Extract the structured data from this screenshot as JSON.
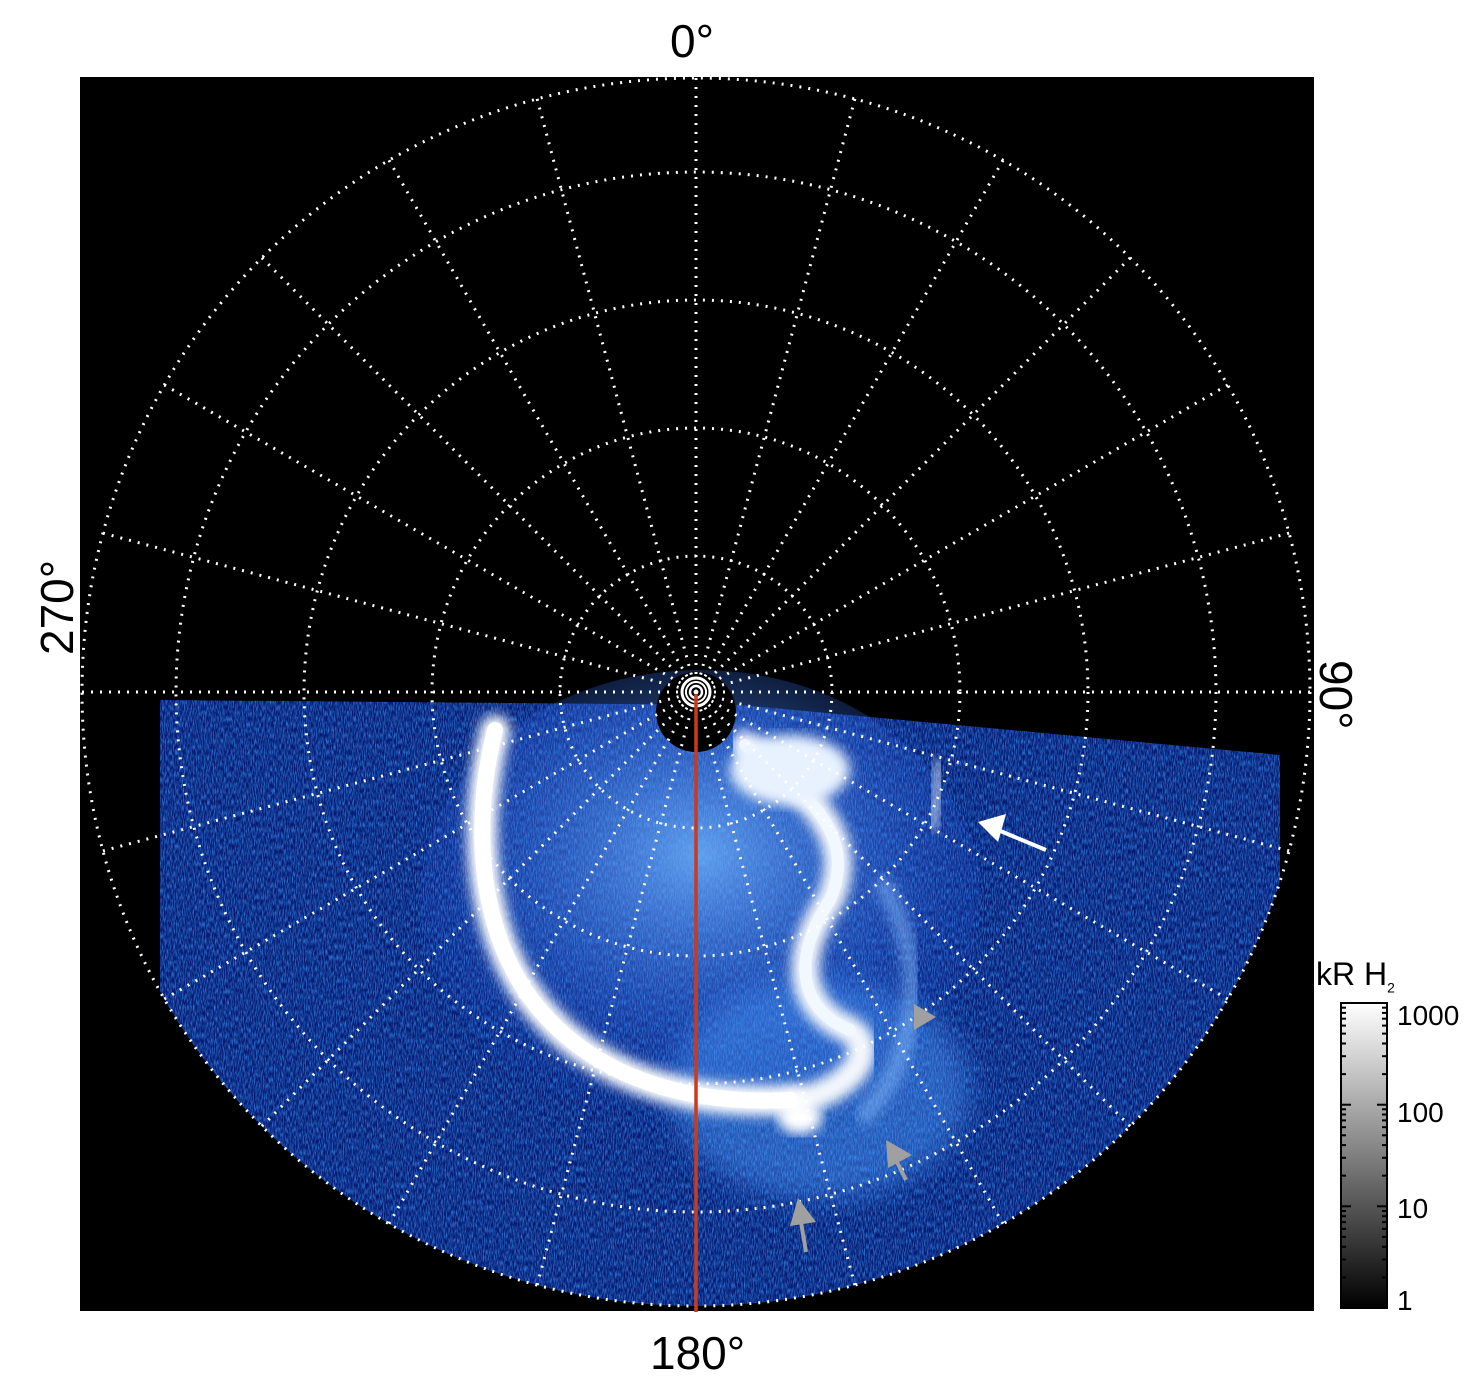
{
  "image": {
    "kind": "polar-projection-auroral-image",
    "colors": {
      "background": "#000000",
      "grid": "#ffffff",
      "aurora_dim": "#0a2fd6",
      "aurora_mid": "#3b8cf0",
      "aurora_bright": "#ffffff",
      "meridian_line": "#cc3a1a",
      "arrow_white": "#ffffff",
      "arrow_gray": "#a0a0a0"
    }
  },
  "labels": {
    "top": "0°",
    "bottom": "180°",
    "left": "270°",
    "right": "90°"
  },
  "colorbar": {
    "title_main": "kR H",
    "title_sub": "2",
    "ticks": [
      "1000",
      "100",
      "10",
      "1"
    ],
    "scale": "log",
    "range": [
      1,
      1000
    ],
    "colors": [
      "#000000",
      "#ffffff"
    ]
  },
  "annotations": {
    "arrows": [
      {
        "color": "white",
        "name": "white-arrow"
      },
      {
        "color": "gray",
        "name": "gray-arrowhead"
      },
      {
        "color": "gray",
        "name": "gray-arrow-1"
      },
      {
        "color": "gray",
        "name": "gray-arrow-2"
      }
    ]
  }
}
